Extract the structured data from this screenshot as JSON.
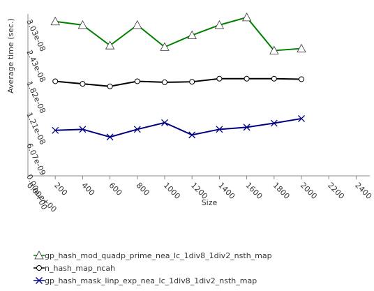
{
  "chart_data": {
    "type": "line",
    "xlabel": "Size",
    "ylabel": "Average time (sec.)",
    "xlim": [
      0,
      2500
    ],
    "ylim": [
      0,
      3.03e-08
    ],
    "x_ticks": [
      "200",
      "400",
      "600",
      "800",
      "1000",
      "1200",
      "1400",
      "1600",
      "1800",
      "2000",
      "2200",
      "2400"
    ],
    "x_origin_label": "0.00e+00",
    "y_ticks": [
      "0.00e+00",
      "6.07e-09",
      "1.21e-08",
      "1.82e-08",
      "2.43e-08",
      "3.03e-08"
    ],
    "grid": false,
    "legend_position": "bottom",
    "series": [
      {
        "name": "gp_hash_mod_quadp_prime_nea_lc_1div8_1div2_nsth_map",
        "color": "#008000",
        "marker": "triangle",
        "x": [
          200,
          400,
          600,
          800,
          1000,
          1200,
          1400,
          1600,
          1800,
          2000
        ],
        "y": [
          3.02e-08,
          2.95e-08,
          2.55e-08,
          2.95e-08,
          2.52e-08,
          2.75e-08,
          2.95e-08,
          3.1e-08,
          2.45e-08,
          2.49e-08
        ]
      },
      {
        "name": "n_hash_map_ncah",
        "color": "#000000",
        "marker": "circle",
        "x": [
          200,
          400,
          600,
          800,
          1000,
          1200,
          1400,
          1600,
          1800,
          2000
        ],
        "y": [
          1.85e-08,
          1.8e-08,
          1.75e-08,
          1.85e-08,
          1.83e-08,
          1.84e-08,
          1.9e-08,
          1.9e-08,
          1.9e-08,
          1.89e-08
        ]
      },
      {
        "name": "gp_hash_mask_linp_exp_nea_lc_1div8_1div2_nsth_map",
        "color": "#000080",
        "marker": "x",
        "x": [
          200,
          400,
          600,
          800,
          1000,
          1200,
          1400,
          1600,
          1800,
          2000
        ],
        "y": [
          8.9e-09,
          9.1e-09,
          7.6e-09,
          9.1e-09,
          1.04e-08,
          8e-09,
          9.1e-09,
          9.5e-09,
          1.03e-08,
          1.12e-08
        ]
      }
    ]
  }
}
